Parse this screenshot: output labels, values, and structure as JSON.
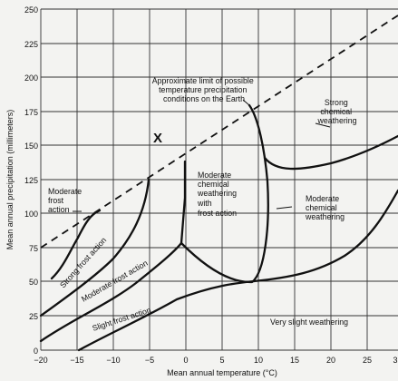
{
  "axes": {
    "x_label": "Mean annual temperature (°C)",
    "y_label": "Mean annual precipitation (millimeters)",
    "x_ticks": [
      "−20",
      "−15",
      "−10",
      "−5",
      "0",
      "5",
      "10",
      "15",
      "20",
      "25",
      "3"
    ],
    "y_ticks": [
      "0",
      "25",
      "50",
      "75",
      "100",
      "125",
      "150",
      "175",
      "200",
      "225",
      "250"
    ]
  },
  "labels": {
    "limit_line": [
      "Approximate limit of possible",
      "temperature precipitation",
      "conditions on the Earth"
    ],
    "strong_chemical": [
      "Strong",
      "chemical",
      "weathering"
    ],
    "moderate_frost": [
      "Moderate",
      "frost",
      "action"
    ],
    "moderate_chem_frost": [
      "Moderate",
      "chemical",
      "weathering",
      "with",
      "frost action"
    ],
    "moderate_chemical": [
      "Moderate",
      "chemical",
      "weathering"
    ],
    "strong_frost": "Strong frost action",
    "moderate_frost_band": "Moderate frost action",
    "slight_frost": "Slight frost action",
    "very_slight": "Very slight weathering",
    "marker": "X"
  }
}
